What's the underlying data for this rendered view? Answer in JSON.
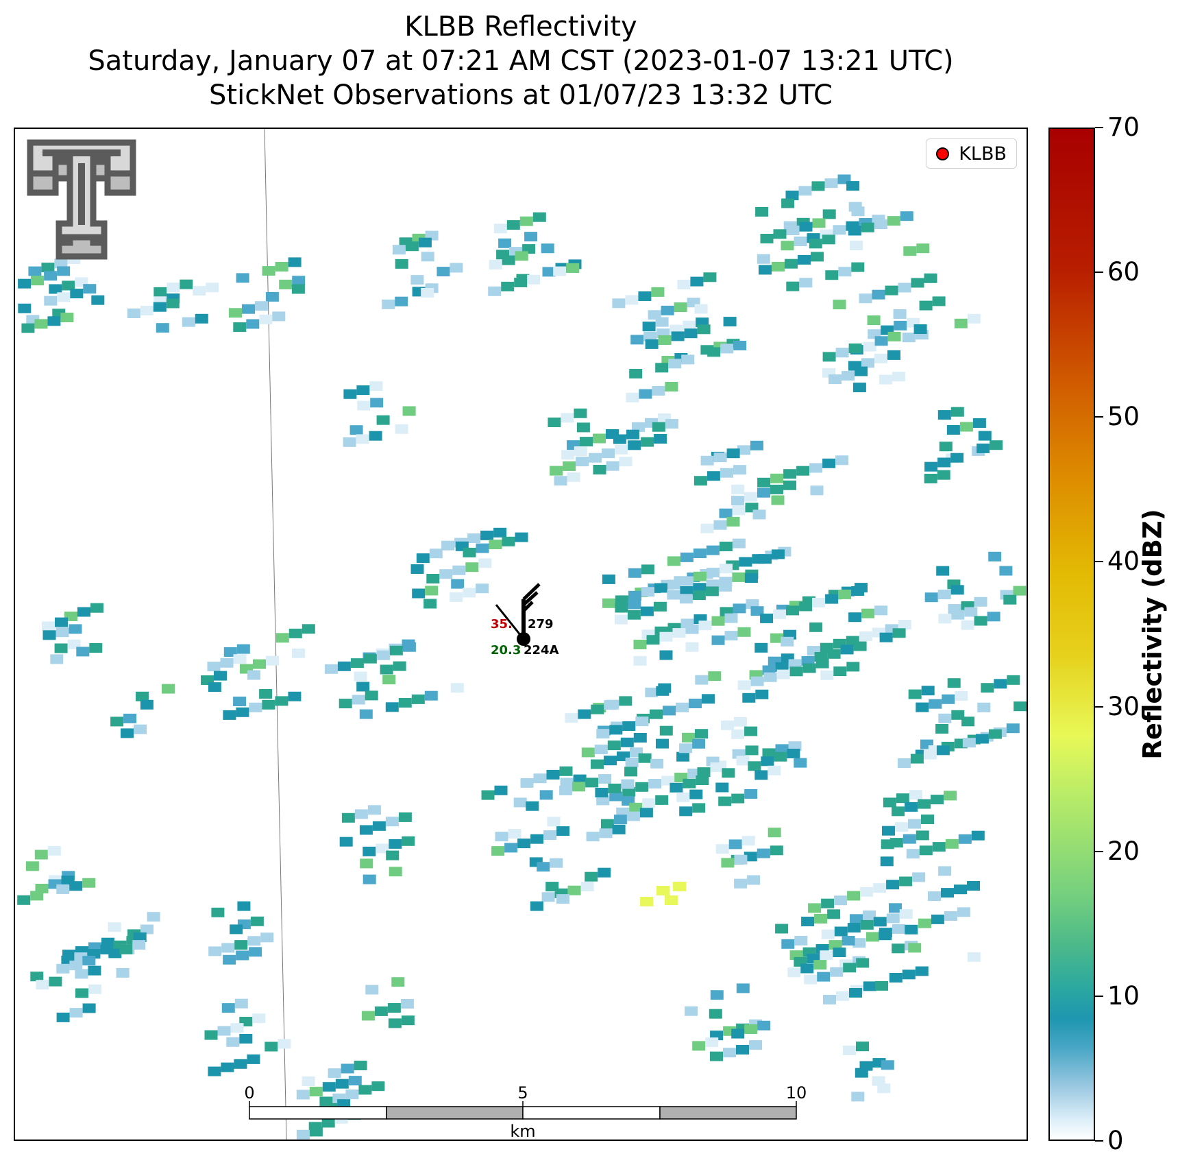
{
  "title": {
    "line1": "KLBB Reflectivity",
    "line2": "Saturday, January 07 at 07:21 AM CST (2023-01-07 13:21 UTC)",
    "line3": "StickNet Observations at 01/07/23 13:32 UTC"
  },
  "legend": {
    "label": "KLBB",
    "marker_color": "#ff0000"
  },
  "station": {
    "temperature": "35.",
    "dewpoint": "20.3",
    "pressure_code": "279",
    "id": "224A"
  },
  "colorbar": {
    "label": "Reflectivity (dBZ)",
    "ticks": [
      "0",
      "10",
      "20",
      "30",
      "40",
      "50",
      "60",
      "70"
    ],
    "range": [
      0,
      70
    ]
  },
  "scalebar": {
    "ticks": [
      "0",
      "5",
      "10"
    ],
    "unit": "km"
  },
  "logo": {
    "name": "Texas Tech Double T"
  },
  "colors": {
    "very_low": "#dbeef8",
    "low": "#a9d3e9",
    "mid_low": "#4ca8cb",
    "mid": "#1c94ac",
    "teal": "#2ca58f",
    "green": "#70cc80",
    "yellow": "#e8f85a"
  }
}
